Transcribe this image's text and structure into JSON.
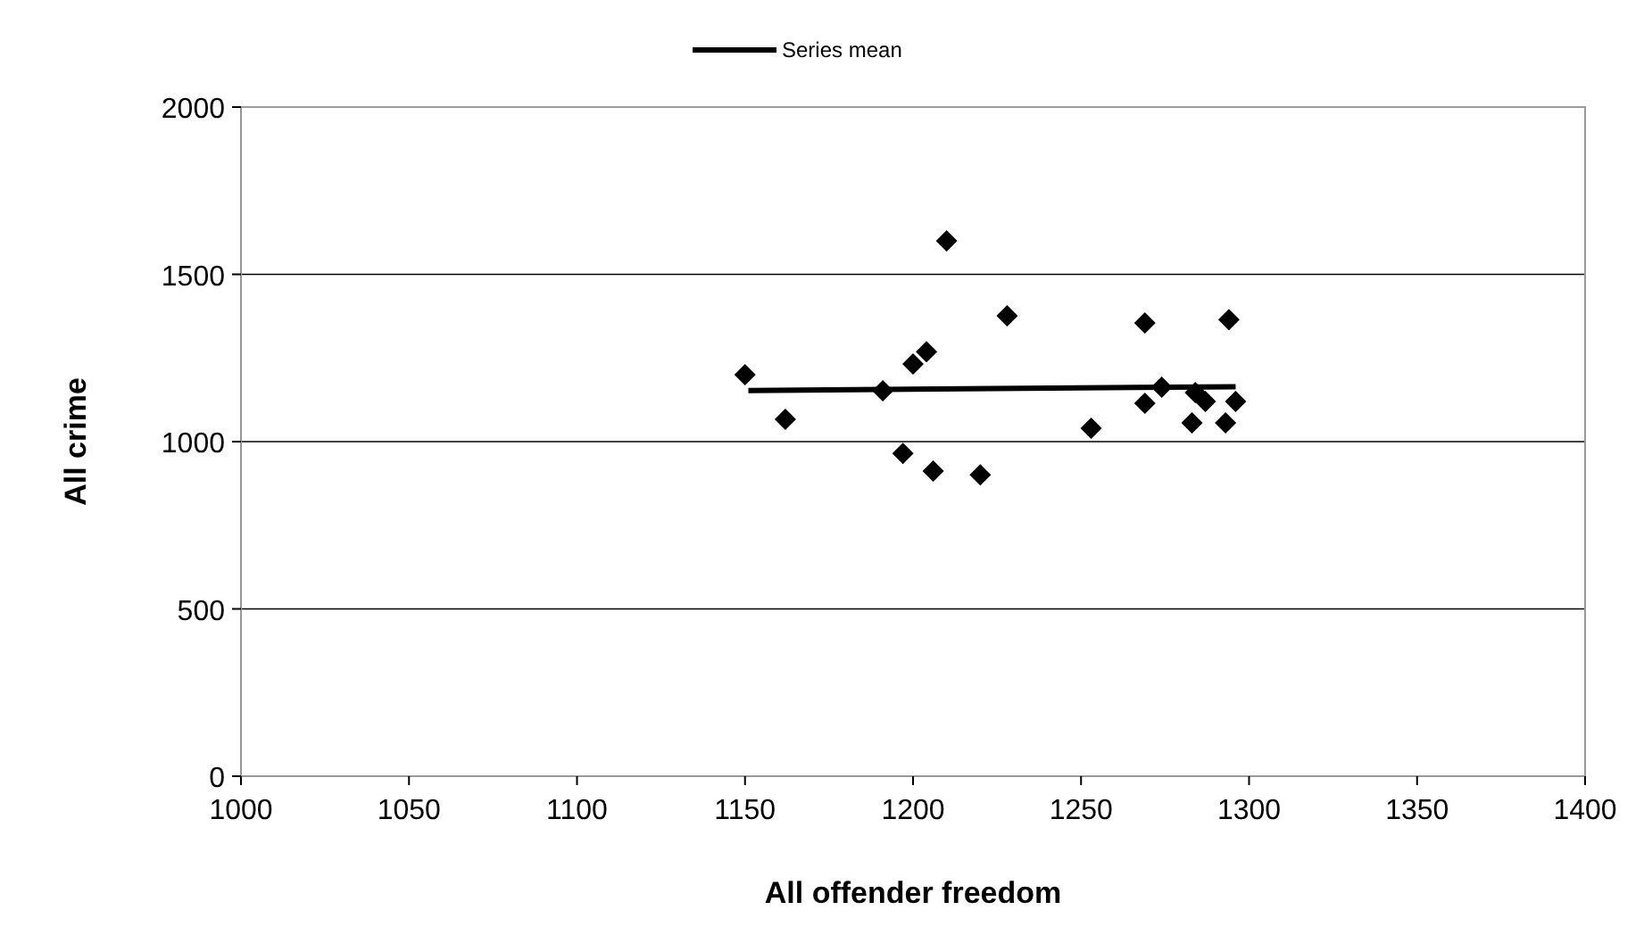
{
  "chart_data": {
    "type": "scatter",
    "xlabel": "All offender freedom",
    "ylabel": "All crime",
    "xlim": [
      1000,
      1400
    ],
    "xticks": [
      1000,
      1050,
      1100,
      1150,
      1200,
      1250,
      1300,
      1350,
      1400
    ],
    "ylim": [
      0,
      2000
    ],
    "yticks": [
      0,
      500,
      1000,
      1500,
      2000
    ],
    "grid": "y",
    "legend": "top",
    "marker": "diamond",
    "series": [
      {
        "color": "#000000",
        "x": [
          1150,
          1162,
          1191,
          1197,
          1200,
          1204,
          1210,
          1206,
          1220,
          1228,
          1253,
          1269,
          1269,
          1274,
          1283,
          1284,
          1287,
          1293,
          1294,
          1296
        ],
        "values": [
          1200,
          1067,
          1152,
          965,
          1232,
          1269,
          1600,
          912,
          901,
          1376,
          1040,
          1355,
          1115,
          1163,
          1056,
          1147,
          1120,
          1056,
          1365,
          1120
        ]
      },
      {
        "type": "line",
        "name": "Series mean",
        "color": "#000000",
        "x": [
          1151,
          1296
        ],
        "values": [
          1153,
          1164
        ],
        "marker": "none",
        "line_style": "solid"
      }
    ]
  }
}
